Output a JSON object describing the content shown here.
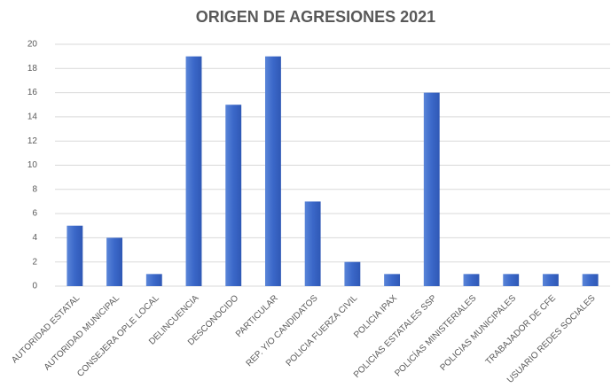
{
  "chart_data": {
    "type": "bar",
    "title": "ORIGEN DE AGRESIONES 2021",
    "categories": [
      "AUTORIDAD ESTATAL",
      "AUTORIDAD MUNICIPAL",
      "CONSEJERA OPLE LOCAL",
      "DELINCUENCIA",
      "DESCONOCIDO",
      "PARTICULAR",
      "REP. Y/O CANDIDATOS",
      "POLICIA FUERZA CIVIL",
      "POLICIA IPAX",
      "POLICIAS ESTATALES SSP",
      "POLICÍAS MINISTERIALES",
      "POLICIAS MUNICIPALES",
      "TRABAJADOR DE CFE",
      "USUARIO REDES SOCIALES"
    ],
    "values": [
      5,
      4,
      1,
      19,
      15,
      19,
      7,
      2,
      1,
      16,
      1,
      1,
      1,
      1
    ],
    "color": "#3b68c9",
    "ylim": [
      0,
      20
    ],
    "yticks": [
      0,
      2,
      4,
      6,
      8,
      10,
      12,
      14,
      16,
      18,
      20
    ],
    "grid": true
  }
}
